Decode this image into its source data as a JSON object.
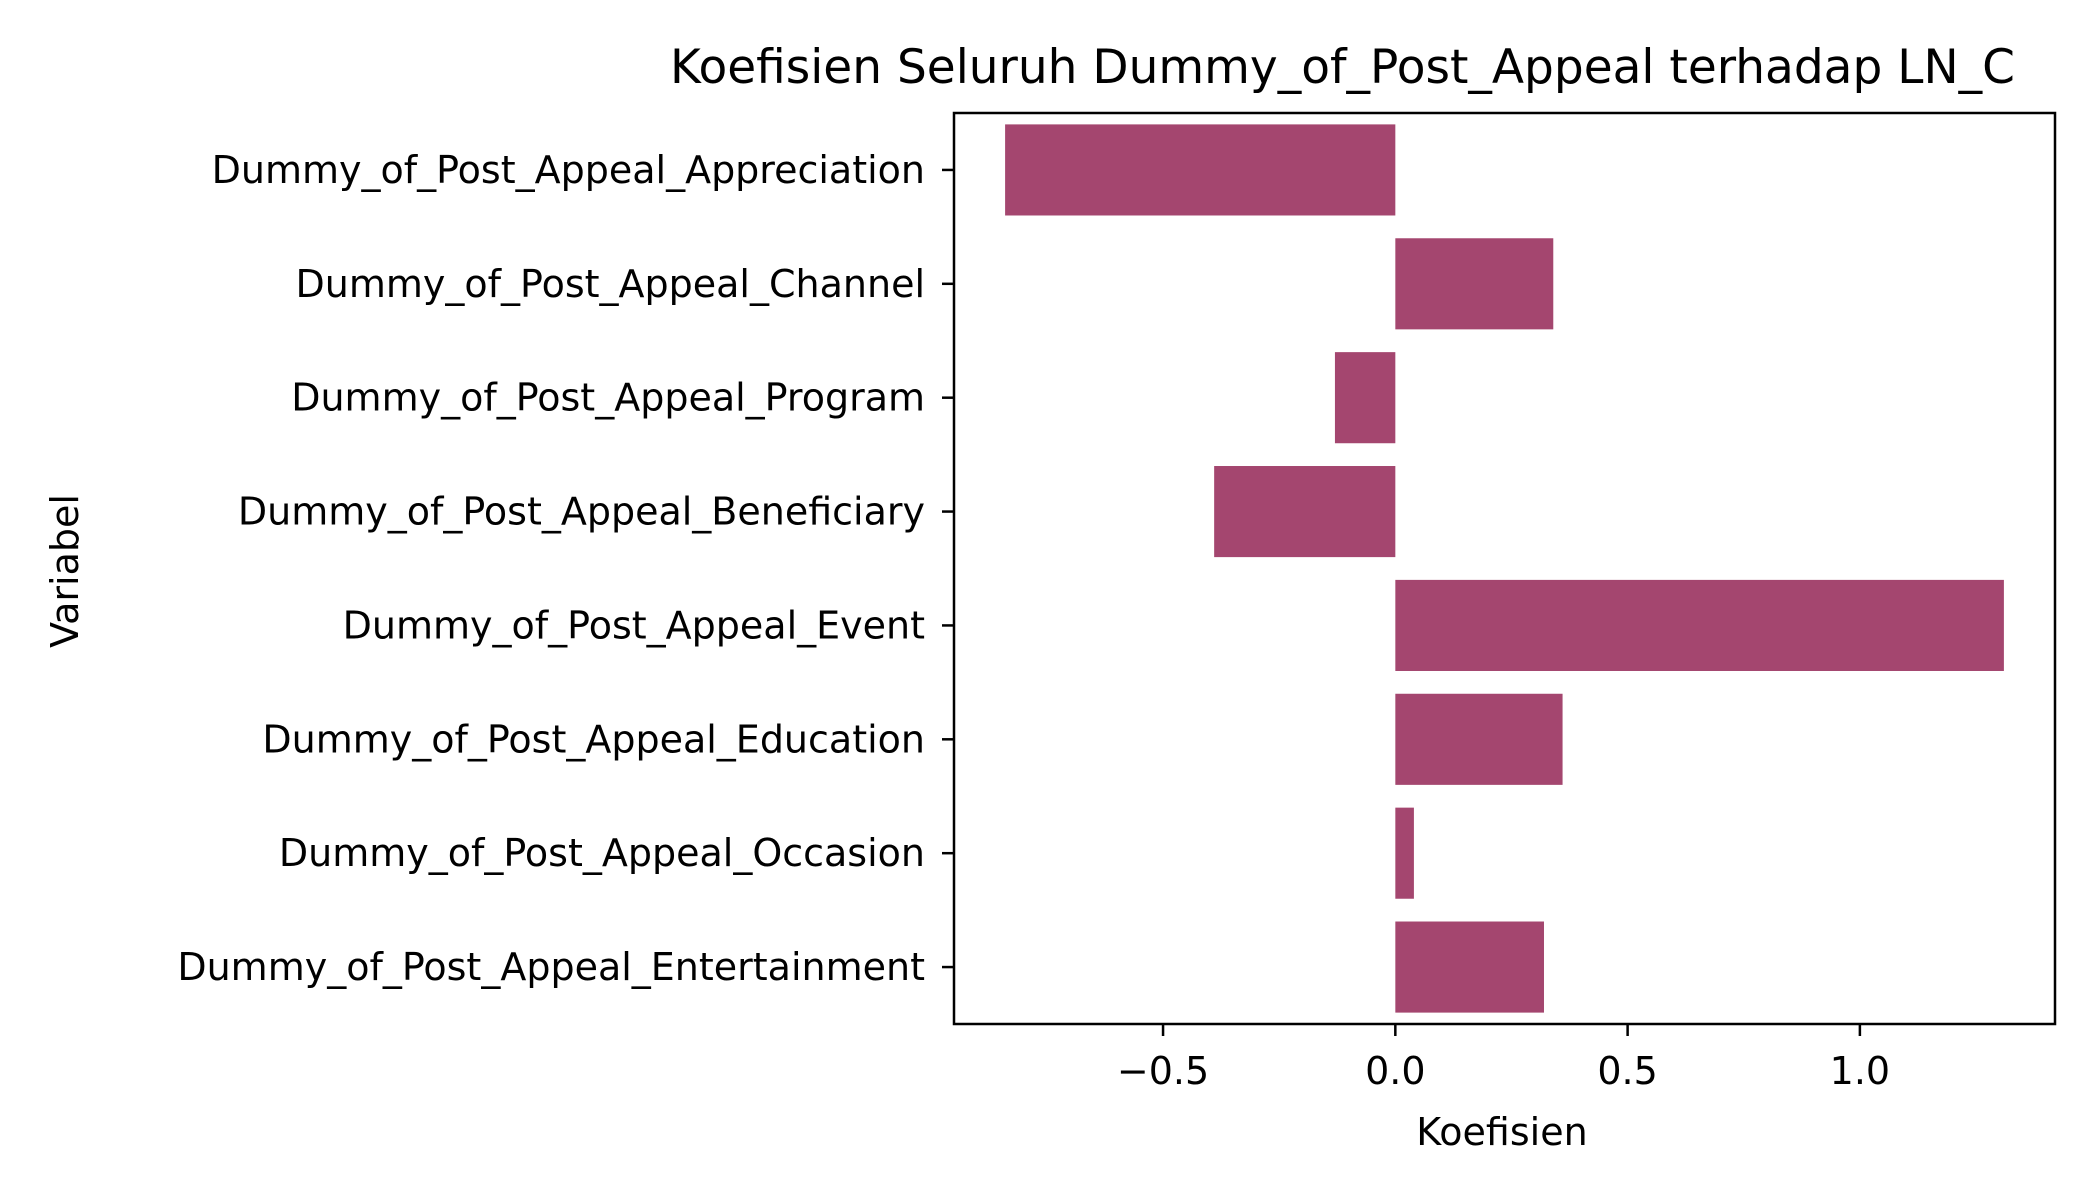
{
  "chart_data": {
    "type": "bar",
    "orientation": "horizontal",
    "title": "Koefisien Seluruh Dummy_of_Post_Appeal terhadap LN_C",
    "xlabel": "Koefisien",
    "ylabel": "Variabel",
    "categories": [
      "Dummy_of_Post_Appeal_Appreciation",
      "Dummy_of_Post_Appeal_Channel",
      "Dummy_of_Post_Appeal_Program",
      "Dummy_of_Post_Appeal_Beneficiary",
      "Dummy_of_Post_Appeal_Event",
      "Dummy_of_Post_Appeal_Education",
      "Dummy_of_Post_Appeal_Occasion",
      "Dummy_of_Post_Appeal_Entertainment"
    ],
    "values": [
      -0.84,
      0.34,
      -0.13,
      -0.39,
      1.31,
      0.36,
      0.04,
      0.32
    ],
    "xlim": [
      -0.95,
      1.42
    ],
    "xticks": [
      -0.5,
      0.0,
      0.5,
      1.0
    ],
    "xtick_labels": [
      "−0.5",
      "0.0",
      "0.5",
      "1.0"
    ],
    "bar_color": "#a4466f",
    "grid": false,
    "legend": "none"
  }
}
